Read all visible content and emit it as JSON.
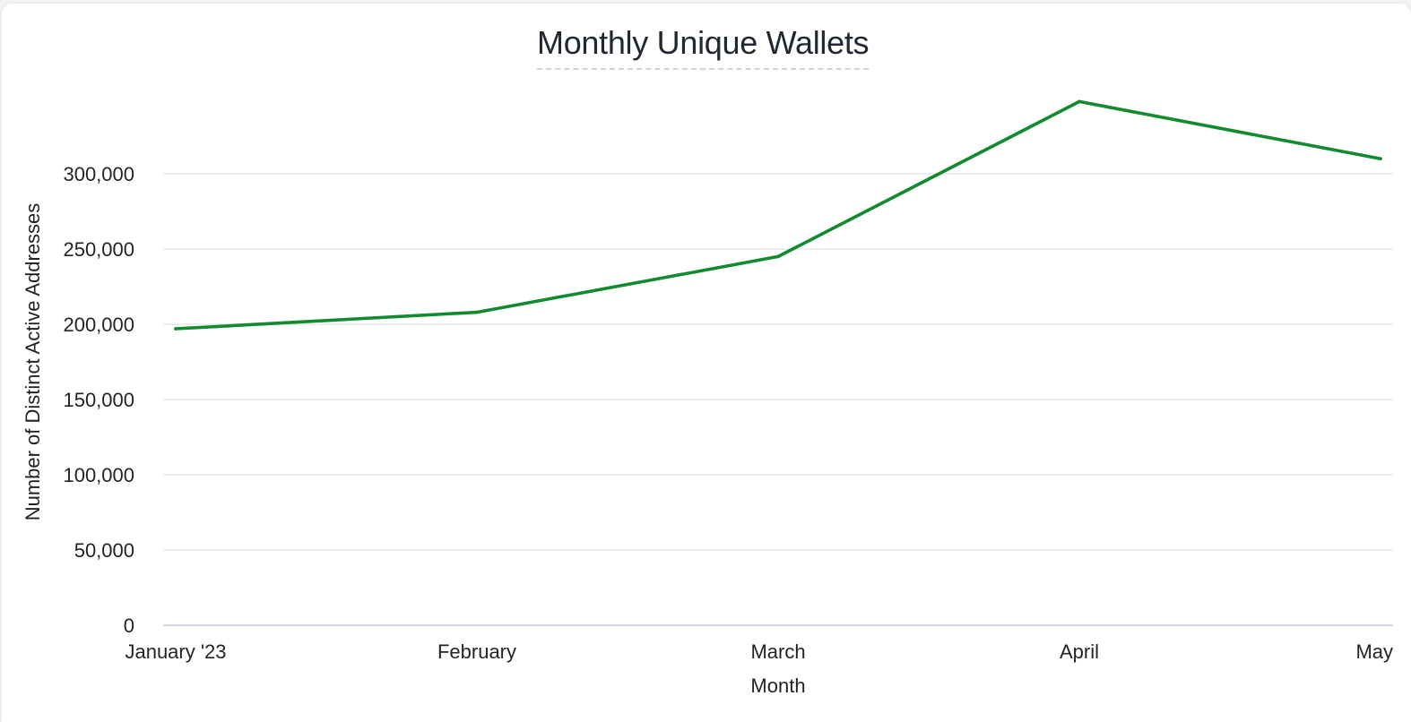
{
  "colors": {
    "series": "#128a2e",
    "grid": "#e1e4e8",
    "baseline": "#c4ccdd",
    "text": "#1f2328",
    "title": "#222831"
  },
  "chart_data": {
    "type": "line",
    "title": "Monthly Unique Wallets",
    "xlabel": "Month",
    "ylabel": "Number of Distinct Active Addresses",
    "categories": [
      "January '23",
      "February",
      "March",
      "April",
      "May"
    ],
    "series": [
      {
        "values": [
          197000,
          208000,
          245000,
          348000,
          310000
        ]
      }
    ],
    "ylim": [
      0,
      348000
    ],
    "yticks": [
      0,
      50000,
      100000,
      150000,
      200000,
      250000,
      300000
    ],
    "ytick_labels": [
      "0",
      "50,000",
      "100,000",
      "150,000",
      "200,000",
      "250,000",
      "300,000"
    ],
    "grid": true,
    "legend": "none"
  }
}
